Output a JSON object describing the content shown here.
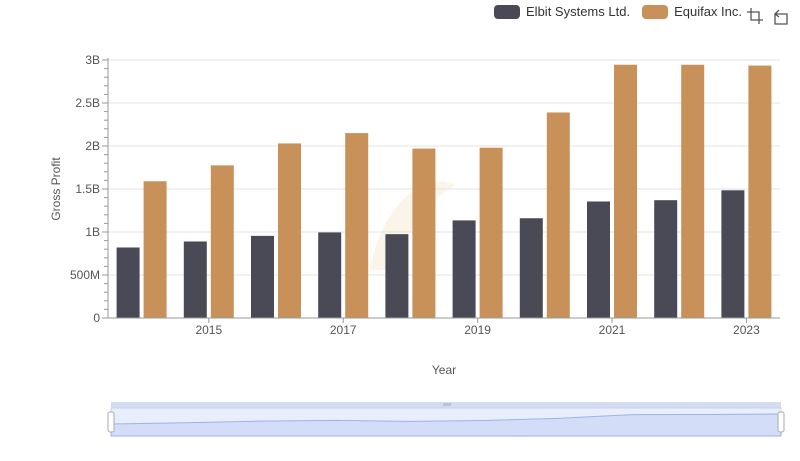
{
  "legend": [
    {
      "name": "Elbit Systems Ltd.",
      "color": "#4a4a57"
    },
    {
      "name": "Equifax Inc.",
      "color": "#c9915a"
    }
  ],
  "toolbar": {
    "icons": [
      "select-icon",
      "reset-zoom-icon"
    ]
  },
  "chart_data": {
    "type": "bar",
    "xlabel": "Year",
    "ylabel": "Gross Profit",
    "x": [
      2014,
      2015,
      2016,
      2017,
      2018,
      2019,
      2020,
      2021,
      2022,
      2023
    ],
    "x_tick_labels": [
      "2015",
      "2017",
      "2019",
      "2021",
      "2023"
    ],
    "y_tick_labels": [
      "0",
      "500M",
      "1B",
      "1.5B",
      "2B",
      "2.5B",
      "3B"
    ],
    "ylim": [
      0,
      3000000000
    ],
    "grid": true,
    "legend_position": "top-right",
    "series": [
      {
        "name": "Elbit Systems Ltd.",
        "color": "#4a4a57",
        "values": [
          820000000,
          890000000,
          955000000,
          995000000,
          975000000,
          1135000000,
          1160000000,
          1355000000,
          1370000000,
          1485000000
        ]
      },
      {
        "name": "Equifax Inc.",
        "color": "#c9915a",
        "values": [
          1590000000,
          1775000000,
          2030000000,
          2150000000,
          1970000000,
          1980000000,
          2390000000,
          2945000000,
          2945000000,
          2935000000
        ]
      }
    ]
  }
}
